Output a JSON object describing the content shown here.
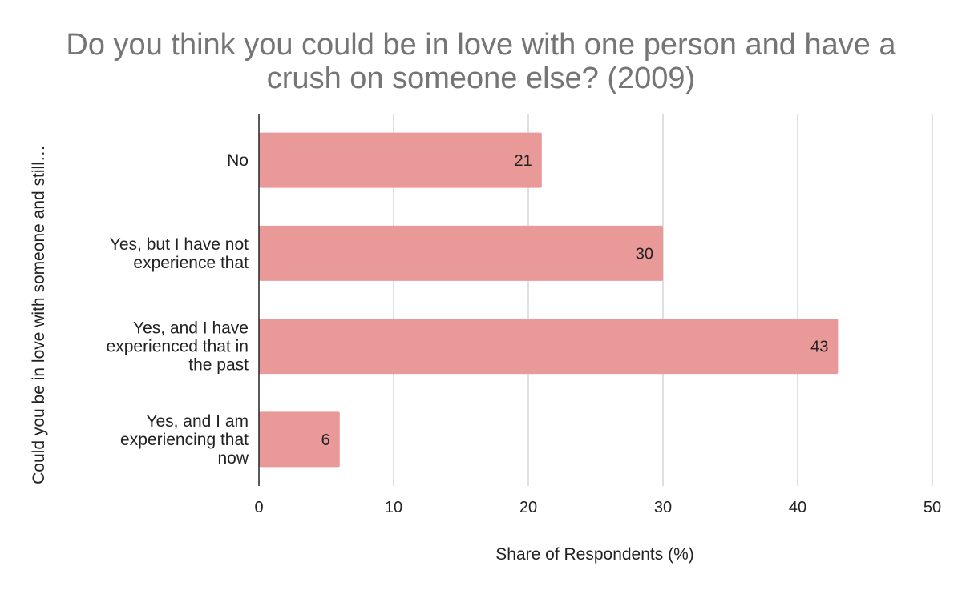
{
  "chart_data": {
    "type": "bar",
    "orientation": "horizontal",
    "title_lines": [
      "Do you think you could be in love with one person and have a",
      "crush on someone else? (2009)"
    ],
    "categories": [
      [
        "No"
      ],
      [
        "Yes, but I have not",
        "experience that"
      ],
      [
        "Yes, and I have",
        "experienced that in",
        "the past"
      ],
      [
        "Yes, and I am",
        "experiencing that",
        "now"
      ]
    ],
    "values": [
      21,
      30,
      43,
      6
    ],
    "xlabel": "Share of Respondents (%)",
    "ylabel": "Could you be in love with someone and still…",
    "xlim": [
      0,
      50
    ],
    "xticks": [
      0,
      10,
      20,
      30,
      40,
      50
    ],
    "grid": true,
    "data_labels": true,
    "bar_color": "#ea9999"
  }
}
